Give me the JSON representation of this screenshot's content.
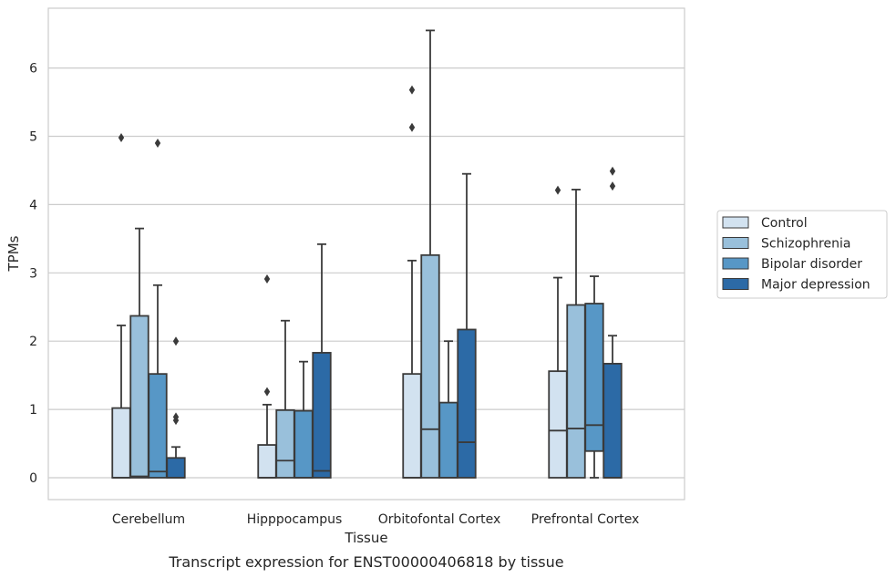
{
  "caption": "Transcript expression for ENST00000406818 by tissue",
  "chart_data": {
    "type": "box",
    "title": "",
    "xlabel": "Tissue",
    "ylabel": "TPMs",
    "ylim": [
      -0.32,
      6.88
    ],
    "yticks": [
      0,
      1,
      2,
      3,
      4,
      5,
      6
    ],
    "grid": true,
    "legend_position": "right",
    "categories": [
      "Cerebellum",
      "Hipppocampus",
      "Orbitofontal Cortex",
      "Prefrontal Cortex"
    ],
    "series": [
      {
        "name": "Control",
        "color": "#d2e2f0",
        "boxes": [
          {
            "q1": 0.0,
            "median": 0.0,
            "q3": 1.02,
            "whisker_low": 0.0,
            "whisker_high": 2.23,
            "outliers": [
              4.98
            ]
          },
          {
            "q1": 0.0,
            "median": 0.0,
            "q3": 0.48,
            "whisker_low": 0.0,
            "whisker_high": 1.07,
            "outliers": [
              1.26,
              2.91
            ]
          },
          {
            "q1": 0.0,
            "median": 0.0,
            "q3": 1.52,
            "whisker_low": 0.0,
            "whisker_high": 3.18,
            "outliers": [
              5.13,
              5.68
            ]
          },
          {
            "q1": 0.0,
            "median": 0.69,
            "q3": 1.56,
            "whisker_low": 0.0,
            "whisker_high": 2.93,
            "outliers": [
              4.21
            ]
          }
        ]
      },
      {
        "name": "Schizophrenia",
        "color": "#99c0db",
        "boxes": [
          {
            "q1": 0.0,
            "median": 0.02,
            "q3": 2.37,
            "whisker_low": 0.0,
            "whisker_high": 3.65,
            "outliers": []
          },
          {
            "q1": 0.0,
            "median": 0.25,
            "q3": 0.99,
            "whisker_low": 0.0,
            "whisker_high": 2.3,
            "outliers": []
          },
          {
            "q1": 0.0,
            "median": 0.71,
            "q3": 3.26,
            "whisker_low": 0.0,
            "whisker_high": 6.55,
            "outliers": []
          },
          {
            "q1": 0.0,
            "median": 0.72,
            "q3": 2.53,
            "whisker_low": 0.0,
            "whisker_high": 4.22,
            "outliers": []
          }
        ]
      },
      {
        "name": "Bipolar disorder",
        "color": "#5797c6",
        "boxes": [
          {
            "q1": 0.0,
            "median": 0.09,
            "q3": 1.52,
            "whisker_low": 0.0,
            "whisker_high": 2.82,
            "outliers": [
              4.9
            ]
          },
          {
            "q1": 0.0,
            "median": 0.0,
            "q3": 0.98,
            "whisker_low": 0.0,
            "whisker_high": 1.7,
            "outliers": []
          },
          {
            "q1": 0.0,
            "median": 0.0,
            "q3": 1.1,
            "whisker_low": 0.0,
            "whisker_high": 2.0,
            "outliers": []
          },
          {
            "q1": 0.39,
            "median": 0.77,
            "q3": 2.55,
            "whisker_low": 0.0,
            "whisker_high": 2.95,
            "outliers": []
          }
        ]
      },
      {
        "name": "Major depression",
        "color": "#2c6aa6",
        "boxes": [
          {
            "q1": 0.0,
            "median": 0.0,
            "q3": 0.29,
            "whisker_low": 0.0,
            "whisker_high": 0.45,
            "outliers": [
              0.84,
              0.89,
              2.0
            ]
          },
          {
            "q1": 0.0,
            "median": 0.1,
            "q3": 1.83,
            "whisker_low": 0.0,
            "whisker_high": 3.42,
            "outliers": []
          },
          {
            "q1": 0.0,
            "median": 0.52,
            "q3": 2.17,
            "whisker_low": 0.0,
            "whisker_high": 4.45,
            "outliers": []
          },
          {
            "q1": 0.0,
            "median": 0.0,
            "q3": 1.67,
            "whisker_low": 0.0,
            "whisker_high": 2.08,
            "outliers": [
              4.27,
              4.49
            ]
          }
        ]
      }
    ]
  }
}
